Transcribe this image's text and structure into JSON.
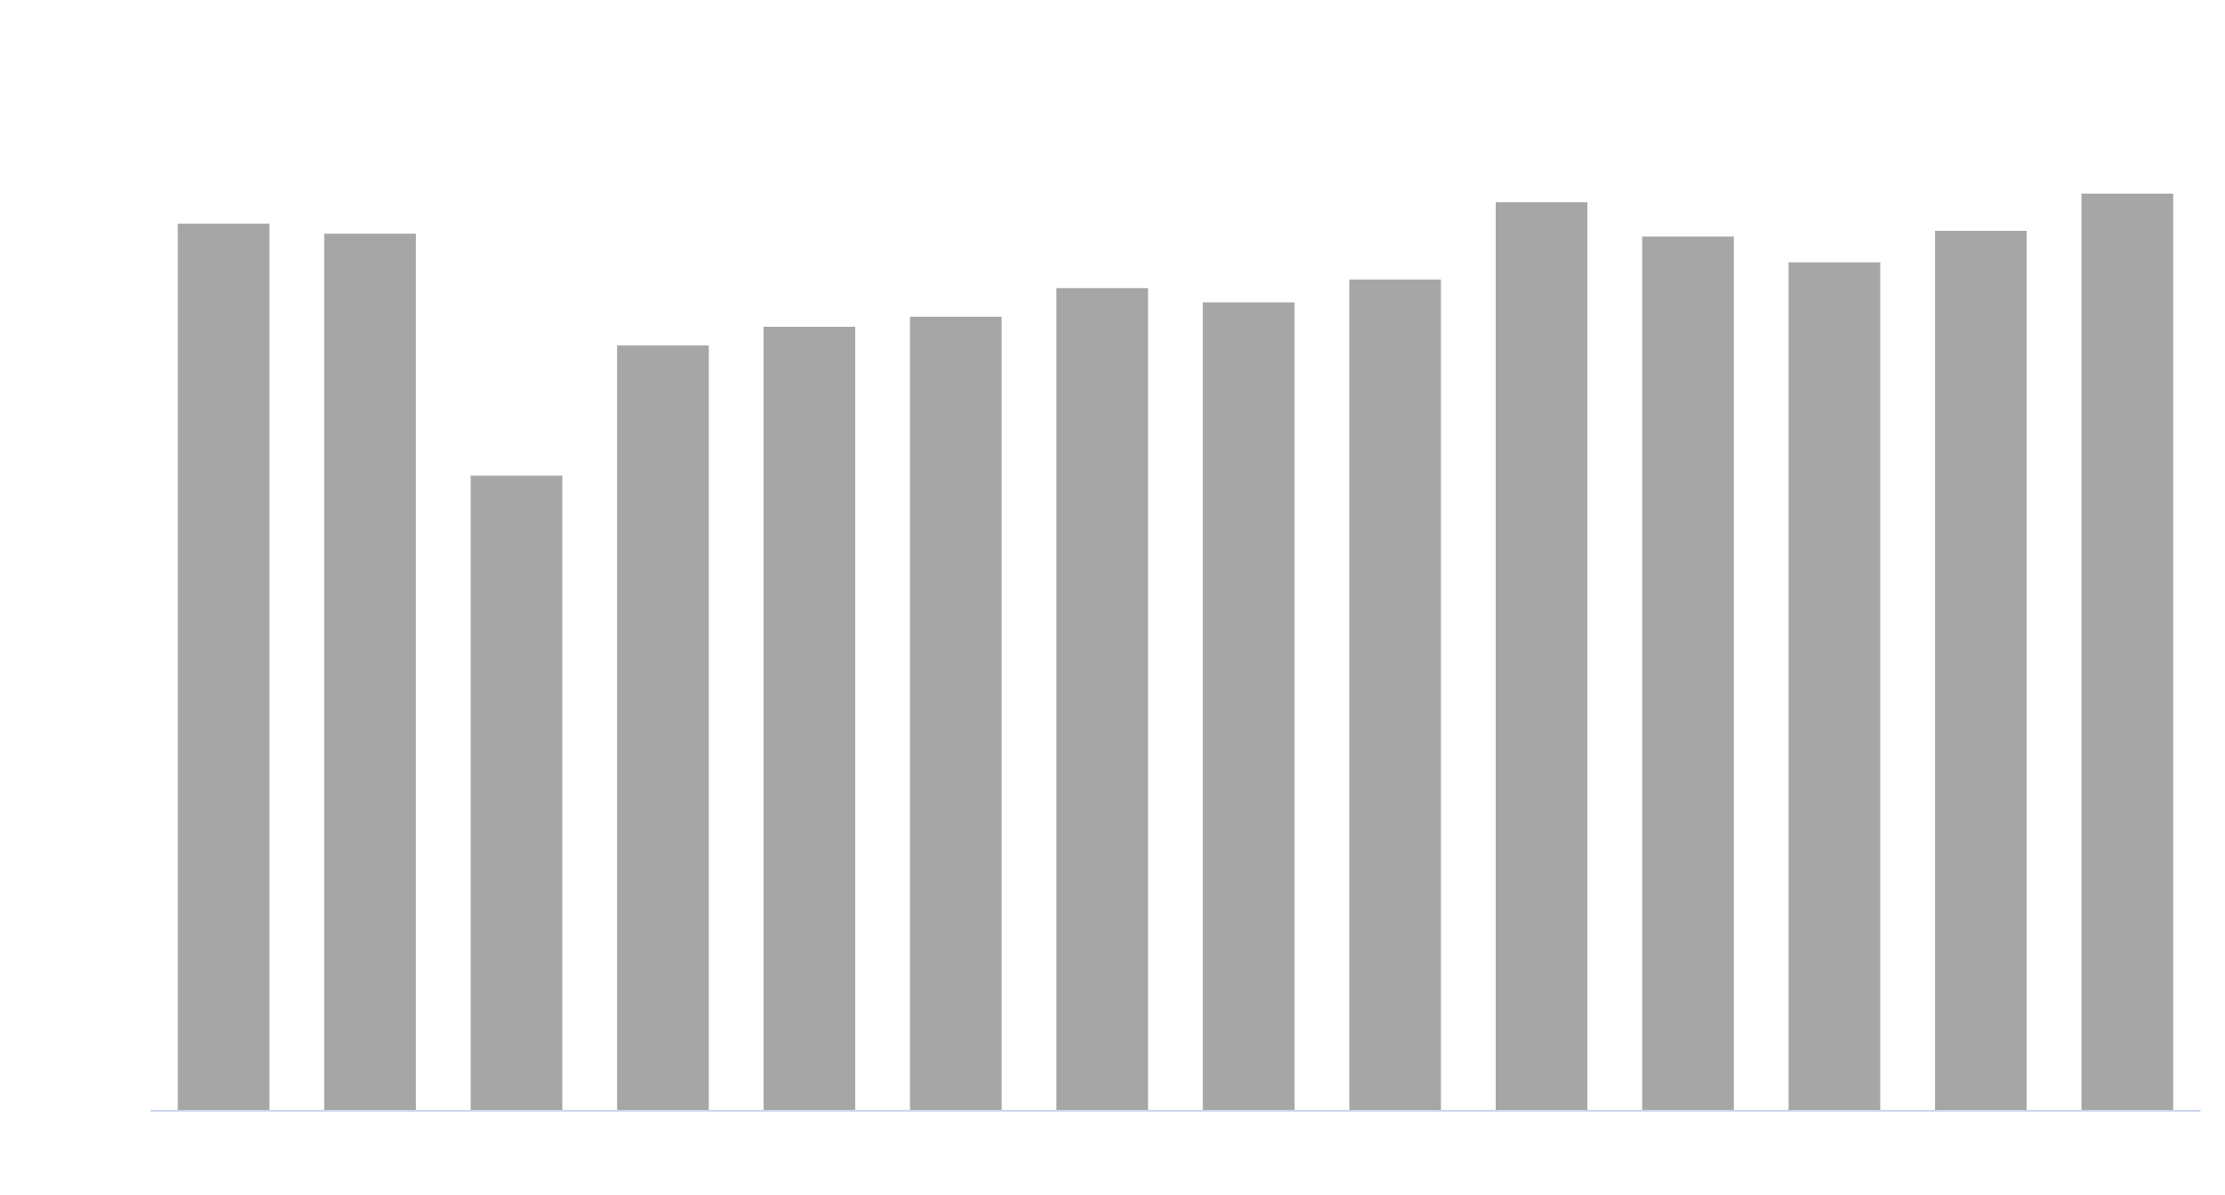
{
  "chart_data": {
    "type": "bar",
    "values": [
      619,
      612,
      443,
      534,
      547,
      554,
      574,
      564,
      580,
      634,
      610,
      592,
      614,
      640
    ],
    "color": "#a6a6a6",
    "ylim": [
      0,
      700
    ]
  }
}
